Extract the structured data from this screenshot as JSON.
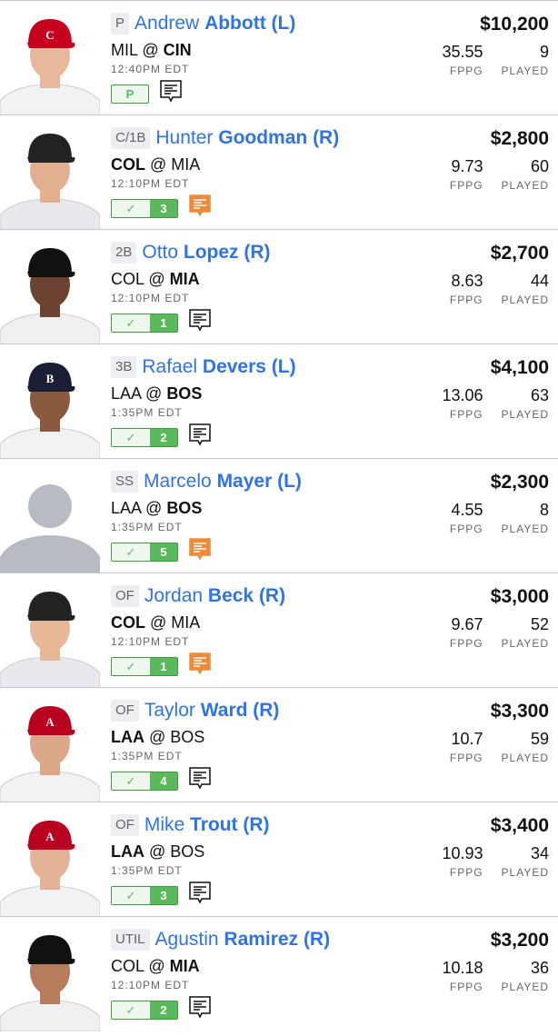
{
  "labels": {
    "fppg": "FPPG",
    "played": "PLAYED"
  },
  "colors": {
    "name": "#2f74e0",
    "check_green": "#5cb85c",
    "note_orange": "#ed8a3a"
  },
  "players": [
    {
      "pos": "P",
      "first": "Andrew",
      "last": "Abbott (L)",
      "away": "MIL",
      "home": "CIN",
      "bold": "home",
      "time": "12:40PM EDT",
      "badge": "P",
      "count": null,
      "note": "black",
      "salary": "$10,200",
      "fppg": "35.55",
      "played": "9",
      "cap": "#c6011f",
      "logo": "C",
      "jersey": "#f2f2f2",
      "skin": "#e8b89a",
      "photo": true
    },
    {
      "pos": "C/1B",
      "first": "Hunter",
      "last": "Goodman (R)",
      "away": "COL",
      "home": "MIA",
      "bold": "away",
      "time": "12:10PM EDT",
      "badge": "check",
      "count": "3",
      "note": "orange",
      "salary": "$2,800",
      "fppg": "9.73",
      "played": "60",
      "cap": "#222",
      "logo": "",
      "jersey": "#e8e8ee",
      "skin": "#e2b090",
      "photo": true
    },
    {
      "pos": "2B",
      "first": "Otto",
      "last": "Lopez (R)",
      "away": "COL",
      "home": "MIA",
      "bold": "home",
      "time": "12:10PM EDT",
      "badge": "check",
      "count": "1",
      "note": "black",
      "salary": "$2,700",
      "fppg": "8.63",
      "played": "44",
      "cap": "#111",
      "logo": "",
      "jersey": "#f0f0f0",
      "skin": "#6b4330",
      "photo": true
    },
    {
      "pos": "3B",
      "first": "Rafael",
      "last": "Devers (L)",
      "away": "LAA",
      "home": "BOS",
      "bold": "home",
      "time": "1:35PM EDT",
      "badge": "check",
      "count": "2",
      "note": "black",
      "salary": "$4,100",
      "fppg": "13.06",
      "played": "63",
      "cap": "#1a1f36",
      "logo": "B",
      "jersey": "#f2f2f2",
      "skin": "#8a5a3e",
      "photo": true
    },
    {
      "pos": "SS",
      "first": "Marcelo",
      "last": "Mayer (L)",
      "away": "LAA",
      "home": "BOS",
      "bold": "home",
      "time": "1:35PM EDT",
      "badge": "check",
      "count": "5",
      "note": "orange",
      "salary": "$2,300",
      "fppg": "4.55",
      "played": "8",
      "cap": "",
      "logo": "",
      "jersey": "",
      "skin": "",
      "photo": false
    },
    {
      "pos": "OF",
      "first": "Jordan",
      "last": "Beck (R)",
      "away": "COL",
      "home": "MIA",
      "bold": "away",
      "time": "12:10PM EDT",
      "badge": "check",
      "count": "1",
      "note": "orange",
      "salary": "$3,000",
      "fppg": "9.67",
      "played": "52",
      "cap": "#222",
      "logo": "",
      "jersey": "#e8e8ee",
      "skin": "#e6b898",
      "photo": true
    },
    {
      "pos": "OF",
      "first": "Taylor",
      "last": "Ward (R)",
      "away": "LAA",
      "home": "BOS",
      "bold": "away",
      "time": "1:35PM EDT",
      "badge": "check",
      "count": "4",
      "note": "black",
      "salary": "$3,300",
      "fppg": "10.7",
      "played": "59",
      "cap": "#ba0021",
      "logo": "A",
      "jersey": "#f2f2f2",
      "skin": "#dba98a",
      "photo": true
    },
    {
      "pos": "OF",
      "first": "Mike",
      "last": "Trout (R)",
      "away": "LAA",
      "home": "BOS",
      "bold": "away",
      "time": "1:35PM EDT",
      "badge": "check",
      "count": "3",
      "note": "black",
      "salary": "$3,400",
      "fppg": "10.93",
      "played": "34",
      "cap": "#ba0021",
      "logo": "A",
      "jersey": "#f2f2f2",
      "skin": "#e3b397",
      "photo": true
    },
    {
      "pos": "UTIL",
      "first": "Agustin",
      "last": "Ramirez (R)",
      "away": "COL",
      "home": "MIA",
      "bold": "home",
      "time": "12:10PM EDT",
      "badge": "check",
      "count": "2",
      "note": "black",
      "salary": "$3,200",
      "fppg": "10.18",
      "played": "36",
      "cap": "#111",
      "logo": "",
      "jersey": "#f0f0f0",
      "skin": "#b57d5c",
      "photo": true
    }
  ]
}
